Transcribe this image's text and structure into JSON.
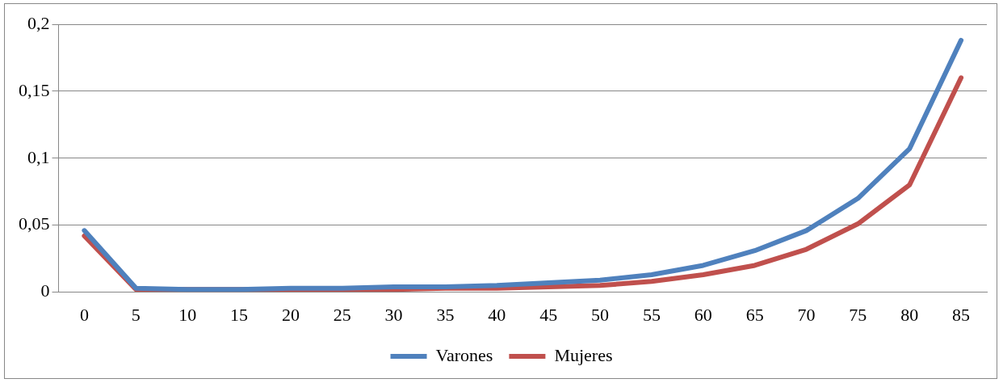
{
  "chart_data": {
    "type": "line",
    "categories": [
      "0",
      "5",
      "10",
      "15",
      "20",
      "25",
      "30",
      "35",
      "40",
      "45",
      "50",
      "55",
      "60",
      "65",
      "70",
      "75",
      "80",
      "85"
    ],
    "series": [
      {
        "name": "Varones",
        "color": "#4f81bd",
        "values": [
          0.046,
          0.003,
          0.002,
          0.002,
          0.003,
          0.003,
          0.004,
          0.004,
          0.005,
          0.007,
          0.009,
          0.013,
          0.02,
          0.031,
          0.046,
          0.07,
          0.107,
          0.188
        ]
      },
      {
        "name": "Mujeres",
        "color": "#c0504d",
        "values": [
          0.042,
          0.002,
          0.002,
          0.002,
          0.002,
          0.002,
          0.002,
          0.003,
          0.003,
          0.004,
          0.005,
          0.008,
          0.013,
          0.02,
          0.032,
          0.051,
          0.08,
          0.16
        ]
      }
    ],
    "ylim": [
      0,
      0.2
    ],
    "yticks": [
      0,
      {
        "value": 0.05,
        "label": "0,05"
      },
      {
        "value": 0.1,
        "label": "0,1"
      },
      {
        "value": 0.15,
        "label": "0,15"
      },
      {
        "value": 0.2,
        "label": "0,2"
      }
    ],
    "grid": "y",
    "legend": "bottom",
    "marker": "none",
    "line_style": "solid"
  }
}
